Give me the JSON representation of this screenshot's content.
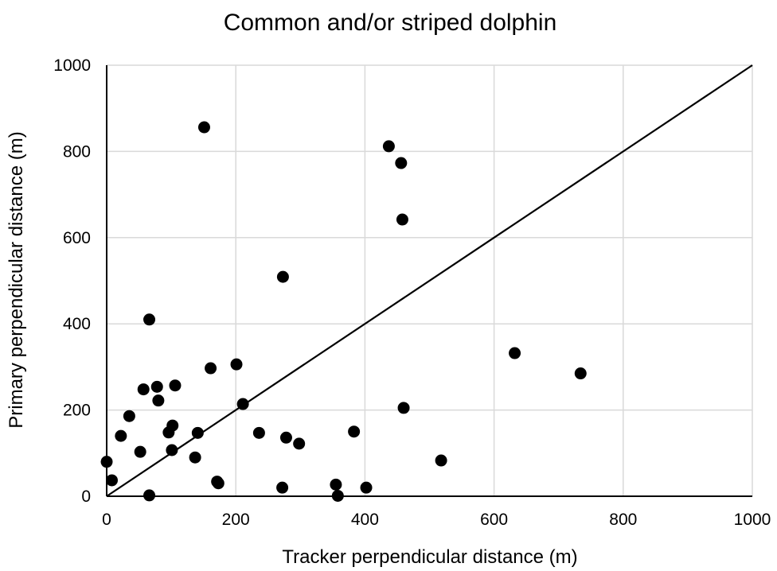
{
  "chart_data": {
    "type": "scatter",
    "title": "Common and/or striped dolphin",
    "xlabel": "Tracker perpendicular distance (m)",
    "ylabel": "Primary perpendicular distance (m)",
    "xlim": [
      0,
      1000
    ],
    "ylim": [
      0,
      1000
    ],
    "xticks": [
      "0",
      "200",
      "400",
      "600",
      "800",
      "1000"
    ],
    "yticks": [
      "0",
      "200",
      "400",
      "600",
      "800",
      "1000"
    ],
    "grid": true,
    "legend": "none",
    "reference_line": {
      "from": [
        0,
        0
      ],
      "to": [
        1000,
        1000
      ]
    },
    "marker_color": "#000000",
    "grid_color": "#d9d9d9",
    "series": [
      {
        "points": [
          [
            0,
            80
          ],
          [
            8,
            37
          ],
          [
            22,
            140
          ],
          [
            35,
            186
          ],
          [
            52,
            103
          ],
          [
            57,
            248
          ],
          [
            66,
            410
          ],
          [
            66,
            2
          ],
          [
            78,
            254
          ],
          [
            80,
            222
          ],
          [
            96,
            148
          ],
          [
            101,
            107
          ],
          [
            102,
            164
          ],
          [
            106,
            257
          ],
          [
            137,
            90
          ],
          [
            141,
            147
          ],
          [
            151,
            856
          ],
          [
            161,
            297
          ],
          [
            171,
            34
          ],
          [
            173,
            30
          ],
          [
            201,
            306
          ],
          [
            211,
            214
          ],
          [
            236,
            147
          ],
          [
            272,
            20
          ],
          [
            273,
            509
          ],
          [
            278,
            136
          ],
          [
            298,
            122
          ],
          [
            355,
            27
          ],
          [
            358,
            1
          ],
          [
            383,
            150
          ],
          [
            402,
            20
          ],
          [
            437,
            812
          ],
          [
            456,
            773
          ],
          [
            458,
            642
          ],
          [
            460,
            205
          ],
          [
            518,
            83
          ],
          [
            632,
            332
          ],
          [
            734,
            285
          ]
        ]
      }
    ]
  }
}
